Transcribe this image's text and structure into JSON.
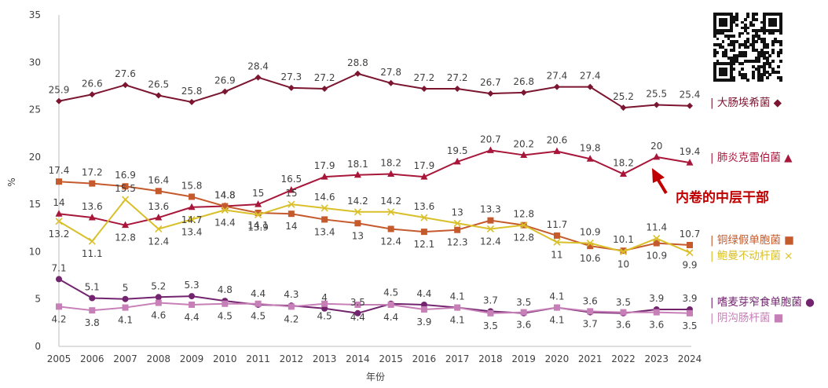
{
  "chart_data": {
    "type": "line",
    "xlabel": "年份",
    "ylabel": "%",
    "ylim": [
      0,
      35
    ],
    "yticks": [
      0,
      5,
      10,
      15,
      20,
      25,
      30,
      35
    ],
    "grid": false,
    "legend_placement": "right, inline labels",
    "categories": [
      "2005",
      "2006",
      "2007",
      "2008",
      "2009",
      "2010",
      "2011",
      "2012",
      "2013",
      "2014",
      "2015",
      "2016",
      "2017",
      "2018",
      "2019",
      "2020",
      "2021",
      "2022",
      "2023",
      "2024"
    ],
    "series": [
      {
        "name": "大肠埃希菌",
        "marker": "◆",
        "color": "#7b1530",
        "values": [
          25.9,
          26.6,
          27.6,
          26.5,
          25.8,
          26.9,
          28.4,
          27.3,
          27.2,
          28.8,
          27.8,
          27.2,
          27.2,
          26.7,
          26.8,
          27.4,
          27.4,
          25.2,
          25.5,
          25.4
        ]
      },
      {
        "name": "肺炎克雷伯菌",
        "marker": "▲",
        "color": "#a8173a",
        "values": [
          14,
          13.6,
          12.8,
          13.6,
          14.7,
          14.8,
          15,
          16.5,
          17.9,
          18.1,
          18.2,
          17.9,
          19.5,
          20.7,
          20.2,
          20.6,
          19.8,
          18.2,
          20,
          19.4
        ]
      },
      {
        "name": "铜绿假单胞菌",
        "marker": "■",
        "color": "#c55a2d",
        "values": [
          17.4,
          17.2,
          16.9,
          16.4,
          15.8,
          14.8,
          14.1,
          14,
          13.4,
          13,
          12.4,
          12.1,
          12.3,
          13.3,
          12.8,
          11.7,
          10.6,
          10.1,
          10.9,
          10.7
        ]
      },
      {
        "name": "鲍曼不动杆菌",
        "marker": "×",
        "color": "#d9c02a",
        "values": [
          13.2,
          11.1,
          15.5,
          12.4,
          13.4,
          14.4,
          13.9,
          15,
          14.6,
          14.2,
          14.2,
          13.6,
          13,
          12.4,
          12.8,
          11,
          10.9,
          10,
          11.4,
          9.9
        ]
      },
      {
        "name": "嗜麦芽窄食单胞菌",
        "marker": "●",
        "color": "#72256e",
        "values": [
          7.1,
          5.1,
          5,
          5.2,
          5.3,
          4.8,
          4.4,
          4.3,
          4,
          3.5,
          4.5,
          4.4,
          4.1,
          3.7,
          3.5,
          4.1,
          3.6,
          3.5,
          3.9,
          3.9
        ]
      },
      {
        "name": "阴沟肠杆菌",
        "marker": "■",
        "color": "#c77fb8",
        "values": [
          4.2,
          3.8,
          4.1,
          4.6,
          4.4,
          4.5,
          4.5,
          4.2,
          4.5,
          4.4,
          4.4,
          3.9,
          4.1,
          3.5,
          3.6,
          4.1,
          3.7,
          3.6,
          3.6,
          3.5
        ]
      }
    ],
    "data_label_positions": [
      [
        "a",
        "a",
        "a",
        "a",
        "a",
        "a",
        "a",
        "a",
        "a",
        "a",
        "a",
        "a",
        "a",
        "a",
        "a",
        "a",
        "a",
        "a",
        "a",
        "a"
      ],
      [
        "a",
        "a",
        "b",
        "a",
        "b",
        "a",
        "a",
        "a",
        "a",
        "a",
        "a",
        "a",
        "a",
        "a",
        "a",
        "a",
        "a",
        "a",
        "a",
        "a"
      ],
      [
        "a",
        "a",
        "a",
        "a",
        "a",
        "a",
        "b",
        "b",
        "b",
        "b",
        "b",
        "b",
        "b",
        "a",
        "a",
        "a",
        "b",
        "a",
        "b",
        "a"
      ],
      [
        "b",
        "b",
        "a",
        "b",
        "b",
        "b",
        "b",
        "a",
        "a",
        "a",
        "a",
        "a",
        "a",
        "b",
        "b",
        "b",
        "a",
        "b",
        "a",
        "b"
      ],
      [
        "a",
        "a",
        "a",
        "a",
        "a",
        "a",
        "a",
        "a",
        "a",
        "a",
        "a",
        "a",
        "a",
        "a",
        "a",
        "a",
        "a",
        "a",
        "a",
        "a"
      ],
      [
        "b",
        "b",
        "b",
        "b",
        "b",
        "b",
        "b",
        "b",
        "b",
        "b",
        "b",
        "b",
        "b",
        "b",
        "b",
        "b",
        "b",
        "b",
        "b",
        "b"
      ]
    ],
    "annotations": [
      {
        "text": "内卷的中层干部",
        "target_series": "肺炎克雷伯菌",
        "target_category": "2023",
        "color": "#c00000"
      }
    ]
  }
}
